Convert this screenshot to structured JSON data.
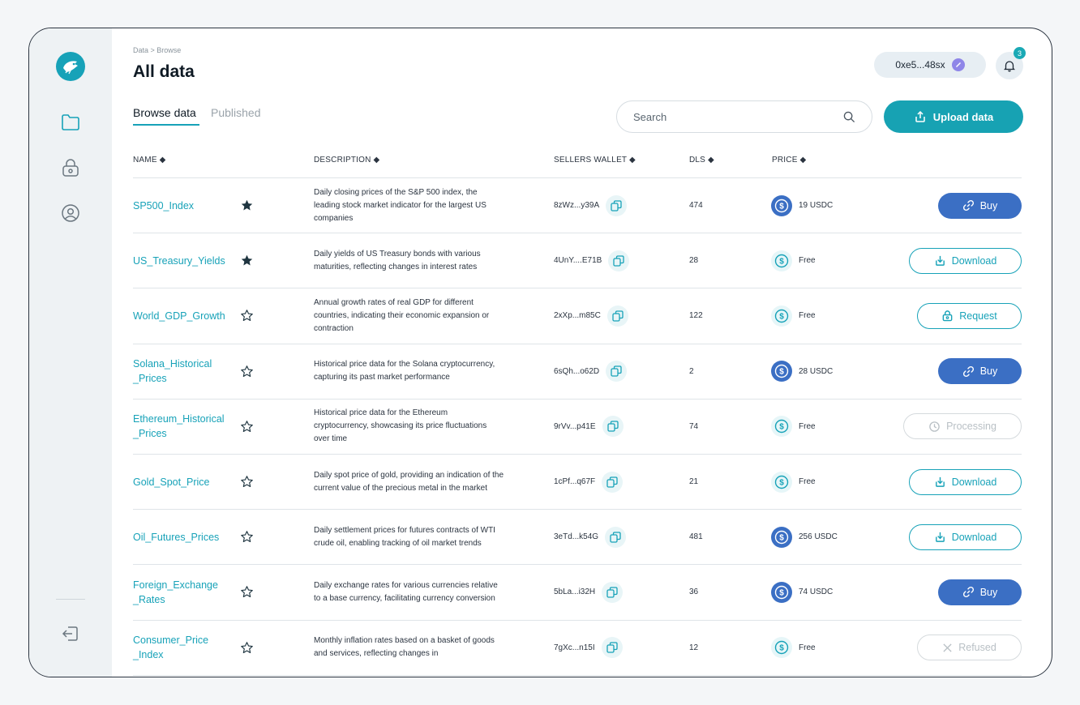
{
  "header": {
    "breadcrumb": "Data > Browse",
    "title": "All data",
    "wallet_address": "0xe5...48sx",
    "notification_count": "3"
  },
  "tabs": {
    "browse": "Browse data",
    "published": "Published"
  },
  "search": {
    "placeholder": "Search"
  },
  "upload_label": "Upload data",
  "columns": {
    "name": "NAME",
    "description": "DESCRIPTION",
    "sellers_wallet": "SELLERS WALLET",
    "dls": "DLS",
    "price": "PRICE"
  },
  "colors": {
    "accent": "#17a2b8",
    "buy": "#3b6fc4",
    "disabled": "#b9c0c5"
  },
  "rows": [
    {
      "name_l1": "SP500_Index",
      "name_l2": "",
      "starred": true,
      "description": "Daily closing prices of the S&P 500 index, the leading stock market indicator for the largest US companies",
      "wallet": "8zWz...y39A",
      "dls": "474",
      "paid": true,
      "price": "19 USDC",
      "action": "buy",
      "action_label": "Buy"
    },
    {
      "name_l1": "US_Treasury_Yields",
      "name_l2": "",
      "starred": true,
      "description": "Daily yields of US Treasury bonds with various maturities, reflecting changes in interest rates",
      "wallet": "4UnY....E71B",
      "dls": "28",
      "paid": false,
      "price": "Free",
      "action": "download",
      "action_label": "Download"
    },
    {
      "name_l1": "World_GDP_Growth",
      "name_l2": "",
      "starred": false,
      "description": "Annual growth rates of real GDP for different countries, indicating their economic expansion or contraction",
      "wallet": "2xXp...m85C",
      "dls": "122",
      "paid": false,
      "price": "Free",
      "action": "request",
      "action_label": "Request"
    },
    {
      "name_l1": "Solana_Historical",
      "name_l2": "_Prices",
      "starred": false,
      "description": "Historical price data for the Solana cryptocurrency, capturing its past market performance",
      "wallet": "6sQh...o62D",
      "dls": "2",
      "paid": true,
      "price": "28 USDC",
      "action": "buy",
      "action_label": "Buy"
    },
    {
      "name_l1": "Ethereum_Historical",
      "name_l2": "_Prices",
      "starred": false,
      "description": "Historical price data for the Ethereum cryptocurrency, showcasing its price fluctuations over time",
      "wallet": "9rVv...p41E",
      "dls": "74",
      "paid": false,
      "price": "Free",
      "action": "processing",
      "action_label": "Processing"
    },
    {
      "name_l1": "Gold_Spot_Price",
      "name_l2": "",
      "starred": false,
      "description": "Daily spot price of gold, providing an indication of the current value of the precious metal in the market",
      "wallet": "1cPf...q67F",
      "dls": "21",
      "paid": false,
      "price": "Free",
      "action": "download",
      "action_label": "Download"
    },
    {
      "name_l1": "Oil_Futures_Prices",
      "name_l2": "",
      "starred": false,
      "description": "Daily settlement prices for futures contracts of WTI crude oil, enabling tracking of oil market trends",
      "wallet": "3eTd...k54G",
      "dls": "481",
      "paid": true,
      "price": "256 USDC",
      "action": "download",
      "action_label": "Download"
    },
    {
      "name_l1": "Foreign_Exchange",
      "name_l2": "_Rates",
      "starred": false,
      "description": "Daily exchange rates for various currencies relative to a base currency, facilitating currency conversion",
      "wallet": "5bLa...i32H",
      "dls": "36",
      "paid": true,
      "price": "74 USDC",
      "action": "buy",
      "action_label": "Buy"
    },
    {
      "name_l1": "Consumer_Price",
      "name_l2": "_Index",
      "starred": false,
      "description": "Monthly inflation rates based on a basket of goods and services, reflecting changes in",
      "wallet": "7gXc...n15I",
      "dls": "12",
      "paid": false,
      "price": "Free",
      "action": "refused",
      "action_label": "Refused"
    }
  ]
}
